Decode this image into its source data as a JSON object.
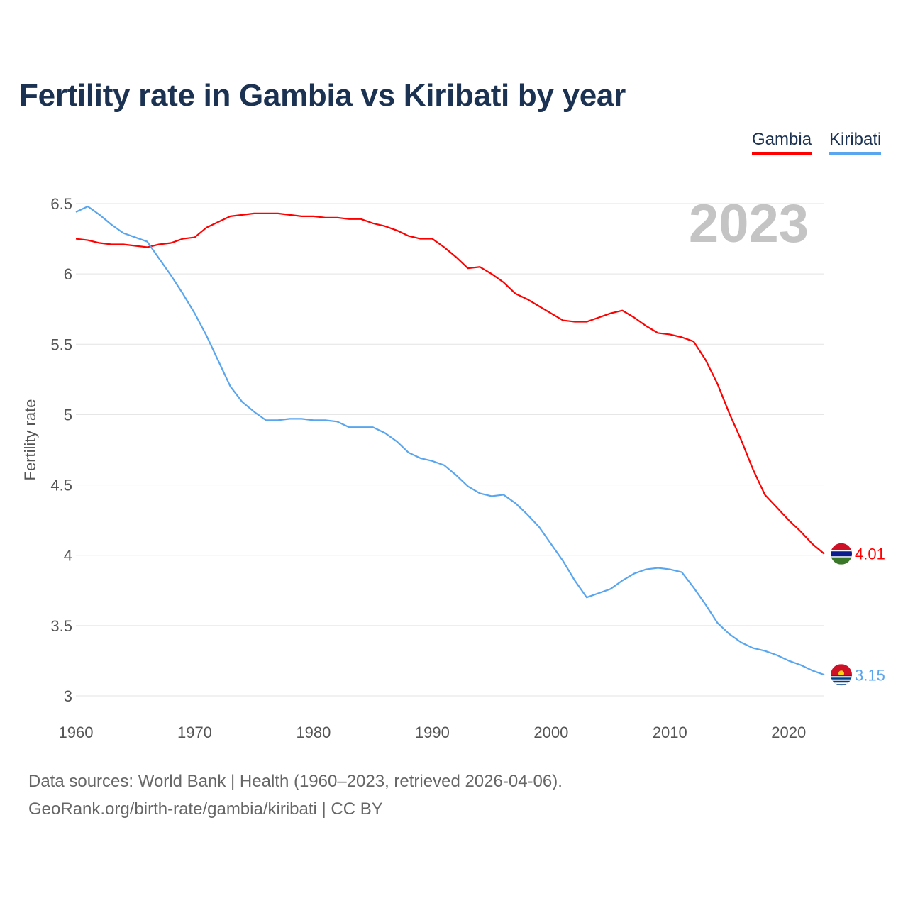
{
  "chart_data": {
    "type": "line",
    "title": "Fertility rate in Gambia vs Kiribati by year",
    "xlabel": "",
    "ylabel": "Fertility rate",
    "xlim": [
      1960,
      2023
    ],
    "ylim": [
      3,
      6.5
    ],
    "y_ticks": [
      "3",
      "3.5",
      "4",
      "4.5",
      "5",
      "5.5",
      "6",
      "6.5"
    ],
    "x_ticks": [
      "1960",
      "1970",
      "1980",
      "1990",
      "2000",
      "2010",
      "2020"
    ],
    "year_label": "2023",
    "legend_position": "top-right",
    "x": [
      1960,
      1961,
      1962,
      1963,
      1964,
      1965,
      1966,
      1967,
      1968,
      1969,
      1970,
      1971,
      1972,
      1973,
      1974,
      1975,
      1976,
      1977,
      1978,
      1979,
      1980,
      1981,
      1982,
      1983,
      1984,
      1985,
      1986,
      1987,
      1988,
      1989,
      1990,
      1991,
      1992,
      1993,
      1994,
      1995,
      1996,
      1997,
      1998,
      1999,
      2000,
      2001,
      2002,
      2003,
      2004,
      2005,
      2006,
      2007,
      2008,
      2009,
      2010,
      2011,
      2012,
      2013,
      2014,
      2015,
      2016,
      2017,
      2018,
      2019,
      2020,
      2021,
      2022,
      2023
    ],
    "series": [
      {
        "name": "Gambia",
        "color": "#ff0000",
        "end_label": "4.01",
        "values": [
          6.25,
          6.24,
          6.22,
          6.21,
          6.21,
          6.2,
          6.19,
          6.21,
          6.22,
          6.25,
          6.26,
          6.33,
          6.37,
          6.41,
          6.42,
          6.43,
          6.43,
          6.43,
          6.42,
          6.41,
          6.41,
          6.4,
          6.4,
          6.39,
          6.39,
          6.36,
          6.34,
          6.31,
          6.27,
          6.25,
          6.25,
          6.19,
          6.12,
          6.04,
          6.05,
          6.0,
          5.94,
          5.86,
          5.82,
          5.77,
          5.72,
          5.67,
          5.66,
          5.66,
          5.69,
          5.72,
          5.74,
          5.69,
          5.63,
          5.58,
          5.57,
          5.55,
          5.52,
          5.39,
          5.22,
          5.01,
          4.82,
          4.61,
          4.43,
          4.34,
          4.25,
          4.17,
          4.08,
          4.01
        ]
      },
      {
        "name": "Kiribati",
        "color": "#5aa6ee",
        "end_label": "3.15",
        "values": [
          6.44,
          6.48,
          6.42,
          6.35,
          6.29,
          6.26,
          6.23,
          6.11,
          5.99,
          5.86,
          5.72,
          5.56,
          5.38,
          5.2,
          5.09,
          5.02,
          4.96,
          4.96,
          4.97,
          4.97,
          4.96,
          4.96,
          4.95,
          4.91,
          4.91,
          4.91,
          4.87,
          4.81,
          4.73,
          4.69,
          4.67,
          4.64,
          4.57,
          4.49,
          4.44,
          4.42,
          4.43,
          4.37,
          4.29,
          4.2,
          4.08,
          3.96,
          3.82,
          3.7,
          3.73,
          3.76,
          3.82,
          3.87,
          3.9,
          3.91,
          3.9,
          3.88,
          3.77,
          3.65,
          3.52,
          3.44,
          3.38,
          3.34,
          3.32,
          3.29,
          3.25,
          3.22,
          3.18,
          3.15
        ]
      }
    ]
  },
  "sources": {
    "line1": "Data sources: World Bank | Health (1960–2023, retrieved 2026-04-06).",
    "line2": "GeoRank.org/birth-rate/gambia/kiribati | CC BY"
  }
}
